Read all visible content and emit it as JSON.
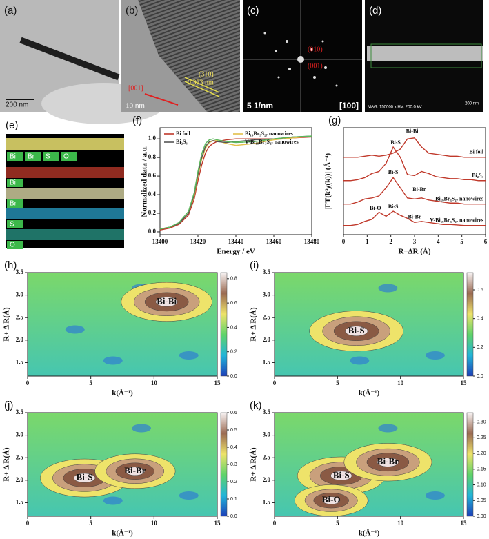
{
  "panels": {
    "a": {
      "label": "(a)",
      "scale_bar": "200 nm"
    },
    "b": {
      "label": "(b)",
      "plane": "(310)",
      "spacing": "0.373 nm",
      "direction": "[001]",
      "scale_bar": "10 nm"
    },
    "c": {
      "label": "(c)",
      "spot_1": "(010)",
      "spot_2": "(001)",
      "scale_bar": "5 1/nm",
      "zone_axis": "[100]"
    },
    "d": {
      "label": "(d)",
      "footer": "MAG: 150000 x  HV: 200.0 kV",
      "scale_bar": "200 nm"
    },
    "e": {
      "label": "(e)",
      "elements": [
        "Bi",
        "Br",
        "S",
        "O"
      ]
    }
  },
  "chart_data": [
    {
      "type": "line",
      "panel_label": "(f)",
      "xlabel": "Energy / eV",
      "ylabel": "Normalized data / a.u.",
      "x": [
        13400,
        13405,
        13410,
        13415,
        13418,
        13420,
        13422,
        13424,
        13426,
        13428,
        13430,
        13435,
        13440,
        13450,
        13460,
        13470,
        13480
      ],
      "xlim": [
        13400,
        13480
      ],
      "xticks": [
        13400,
        13420,
        13440,
        13460,
        13480
      ],
      "ylim": [
        -0.03,
        1.12
      ],
      "yticks": [
        {
          "value": 0,
          "label": "0.0"
        },
        {
          "value": 0.2,
          "label": "0.2"
        },
        {
          "value": 0.4,
          "label": "0.4"
        },
        {
          "value": 0.6,
          "label": "0.6"
        },
        {
          "value": 0.8,
          "label": "0.8"
        },
        {
          "value": 1,
          "label": "1.0"
        }
      ],
      "legend": "upper-left",
      "series": [
        {
          "name": "Bi foil",
          "color": "#c0392b",
          "values": [
            0.02,
            0.04,
            0.08,
            0.18,
            0.35,
            0.55,
            0.72,
            0.85,
            0.92,
            0.95,
            0.97,
            0.99,
            1.0,
            1.0,
            1.0,
            1.01,
            1.02
          ]
        },
        {
          "name": "Bi₁₉Br₃S₂₇ nanowires",
          "color": "#e3c04a",
          "values": [
            0.03,
            0.05,
            0.09,
            0.2,
            0.38,
            0.6,
            0.78,
            0.9,
            0.96,
            0.98,
            0.98,
            0.95,
            0.93,
            0.95,
            0.99,
            1.01,
            1.03
          ]
        },
        {
          "name": "Bi₂S₃",
          "color": "#555555",
          "values": [
            0.03,
            0.05,
            0.09,
            0.2,
            0.4,
            0.62,
            0.8,
            0.92,
            0.97,
            0.98,
            0.97,
            0.96,
            0.97,
            0.99,
            1.0,
            1.02,
            1.03
          ]
        },
        {
          "name": "V-Bi₁₉Br₃S₂₇ nanowires",
          "color": "#5cb85c",
          "values": [
            0.03,
            0.05,
            0.1,
            0.22,
            0.42,
            0.65,
            0.84,
            0.95,
            0.99,
            1.0,
            0.99,
            0.97,
            0.96,
            0.97,
            1.0,
            1.02,
            1.03
          ]
        }
      ]
    },
    {
      "type": "line",
      "panel_label": "(g)",
      "xlabel": "R+ΔR (Å)",
      "ylabel": "|FT(k³χ(k))| (Å⁻⁴)",
      "x": [
        0,
        0.3,
        0.6,
        0.9,
        1.2,
        1.5,
        1.8,
        2.1,
        2.4,
        2.7,
        3.0,
        3.3,
        3.6,
        3.9,
        4.2,
        4.5,
        4.8,
        5.1,
        5.4,
        5.7,
        6.0
      ],
      "xlim": [
        0,
        6
      ],
      "xticks": [
        0,
        1,
        2,
        3,
        4,
        5,
        6
      ],
      "ylim": [
        0,
        10.5
      ],
      "legend": "inline",
      "annotations": [
        "Bi-Bi",
        "Bi-S",
        "Bi-S",
        "Bi-Br",
        "Bi-O",
        "Bi-S",
        "Bi-Br"
      ],
      "series": [
        {
          "name": "Bi foil",
          "color": "#c0392b",
          "values": [
            7.6,
            7.6,
            7.6,
            7.7,
            7.8,
            7.7,
            7.8,
            8.0,
            8.4,
            9.4,
            9.5,
            8.6,
            8.0,
            7.9,
            7.8,
            7.7,
            7.7,
            7.6,
            7.6,
            7.6,
            7.6
          ]
        },
        {
          "name": "Bi₂S₃",
          "color": "#c0392b",
          "values": [
            5.3,
            5.3,
            5.4,
            5.6,
            6.0,
            6.2,
            7.0,
            8.6,
            7.6,
            5.9,
            5.8,
            6.2,
            6.0,
            5.7,
            5.6,
            5.5,
            5.5,
            5.4,
            5.4,
            5.3,
            5.3
          ]
        },
        {
          "name": "Bi₁₉Br₃S₂₇ nanowires",
          "color": "#c0392b",
          "values": [
            3.0,
            3.0,
            3.2,
            3.5,
            3.6,
            3.8,
            4.6,
            5.6,
            4.6,
            3.6,
            3.5,
            3.6,
            3.4,
            3.3,
            3.2,
            3.1,
            3.1,
            3.0,
            3.0,
            3.0,
            3.0
          ]
        },
        {
          "name": "V-Bi₁₉Br₃S₂₇ nanowires",
          "color": "#c0392b",
          "values": [
            0.9,
            0.9,
            1.0,
            1.3,
            1.5,
            2.2,
            1.8,
            2.3,
            1.9,
            1.6,
            1.2,
            1.3,
            1.2,
            1.1,
            1.0,
            1.0,
            0.95,
            0.9,
            0.9,
            0.9,
            0.9
          ]
        }
      ]
    },
    {
      "type": "contour",
      "panel_label": "(h)",
      "xlabel": "k(Å⁻¹)",
      "ylabel": "R+ Δ R(Å)",
      "xlim": [
        0,
        15
      ],
      "xticks": [
        0,
        5,
        10,
        15
      ],
      "ylim": [
        1.2,
        3.5
      ],
      "yticks": [
        1.5,
        {
          "value": 2,
          "label": "2.0"
        },
        2.5,
        {
          "value": 3,
          "label": "3.0"
        },
        3.5
      ],
      "zlim": [
        0,
        0.85
      ],
      "zticks": [
        {
          "value": 0,
          "label": "0.0"
        },
        {
          "value": 0.2,
          "label": "0.2"
        },
        {
          "value": 0.4,
          "label": "0.4"
        },
        {
          "value": 0.6,
          "label": "0.6"
        },
        {
          "value": 0.8,
          "label": "0.8"
        }
      ],
      "peaks": [
        {
          "label": "Bi-Bi",
          "k": 11,
          "r": 2.85,
          "intensity": 0.8
        }
      ]
    },
    {
      "type": "contour",
      "panel_label": "(i)",
      "xlabel": "k(Å⁻¹)",
      "ylabel": "R+ Δ R(Å)",
      "xlim": [
        0,
        15
      ],
      "xticks": [
        0,
        5,
        10,
        15
      ],
      "ylim": [
        1.2,
        3.5
      ],
      "yticks": [
        1.5,
        {
          "value": 2,
          "label": "2.0"
        },
        2.5,
        {
          "value": 3,
          "label": "3.0"
        },
        3.5
      ],
      "zlim": [
        0,
        0.72
      ],
      "zticks": [
        {
          "value": 0,
          "label": "0.0"
        },
        {
          "value": 0.2,
          "label": "0.2"
        },
        {
          "value": 0.4,
          "label": "0.4"
        },
        {
          "value": 0.6,
          "label": "0.6"
        }
      ],
      "peaks": [
        {
          "label": "Bi-S",
          "k": 6.5,
          "r": 2.2,
          "intensity": 0.7
        }
      ]
    },
    {
      "type": "contour",
      "panel_label": "(j)",
      "xlabel": "k(Å⁻¹)",
      "ylabel": "R+ Δ R(Å)",
      "xlim": [
        0,
        15
      ],
      "xticks": [
        0,
        5,
        10,
        15
      ],
      "ylim": [
        1.2,
        3.5
      ],
      "yticks": [
        1.5,
        {
          "value": 2,
          "label": "2.0"
        },
        2.5,
        {
          "value": 3,
          "label": "3.0"
        },
        3.5
      ],
      "zlim": [
        0,
        0.6
      ],
      "zticks": [
        {
          "value": 0,
          "label": "0.0"
        },
        0.1,
        0.2,
        0.3,
        0.4,
        0.5,
        0.6
      ],
      "peaks": [
        {
          "label": "Bi-S",
          "k": 4.5,
          "r": 2.05,
          "intensity": 0.55
        },
        {
          "label": "Bi-Br",
          "k": 8.5,
          "r": 2.2,
          "intensity": 0.5
        }
      ]
    },
    {
      "type": "contour",
      "panel_label": "(k)",
      "xlabel": "k(Å⁻¹)",
      "ylabel": "R+ Δ R(Å)",
      "xlim": [
        0,
        15
      ],
      "xticks": [
        0,
        5,
        10,
        15
      ],
      "ylim": [
        1.2,
        3.5
      ],
      "yticks": [
        1.5,
        {
          "value": 2,
          "label": "2.0"
        },
        2.5,
        {
          "value": 3,
          "label": "3.0"
        },
        3.5
      ],
      "zlim": [
        0,
        0.33
      ],
      "zticks": [
        {
          "value": 0,
          "label": "0.00"
        },
        {
          "value": 0.05,
          "label": "0.05"
        },
        {
          "value": 0.1,
          "label": "0.10"
        },
        {
          "value": 0.15,
          "label": "0.15"
        },
        {
          "value": 0.2,
          "label": "0.20"
        },
        {
          "value": 0.25,
          "label": "0.25"
        },
        {
          "value": 0.3,
          "label": "0.30"
        }
      ],
      "peaks": [
        {
          "label": "Bi-S",
          "k": 5.3,
          "r": 2.1,
          "intensity": 0.3
        },
        {
          "label": "Bi-Br",
          "k": 9,
          "r": 2.4,
          "intensity": 0.3
        },
        {
          "label": "Bi-O",
          "k": 4.5,
          "r": 1.55,
          "intensity": 0.25
        }
      ]
    }
  ]
}
